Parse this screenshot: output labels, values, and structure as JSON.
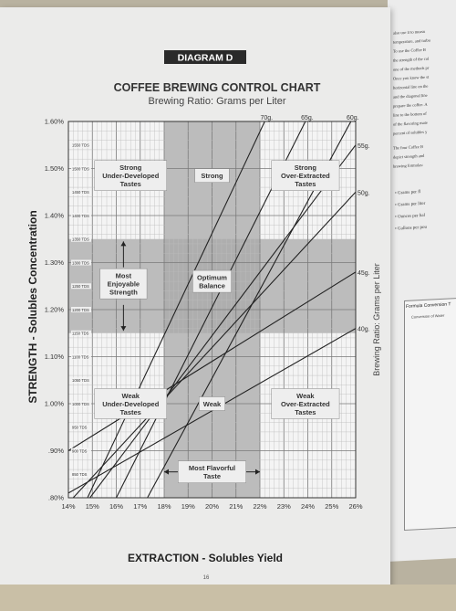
{
  "diagram_label": "DIAGRAM D",
  "page_number": "16",
  "chart_data": {
    "type": "line",
    "title": "COFFEE BREWING CONTROL CHART",
    "subtitle": "Brewing Ratio:  Grams per Liter",
    "xlabel": "EXTRACTION - Solubles Yield",
    "ylabel": "STRENGTH - Solubles Concentration",
    "ylabel_right": "Brewing Ratio:  Grams per Liter",
    "xlim": [
      14,
      26
    ],
    "ylim": [
      0.8,
      1.6
    ],
    "x_ticks": [
      "14%",
      "15%",
      "16%",
      "17%",
      "18%",
      "19%",
      "20%",
      "21%",
      "22%",
      "23%",
      "24%",
      "25%",
      "26%"
    ],
    "y_ticks": [
      {
        "v": 0.8,
        "label": ".80%"
      },
      {
        "v": 0.9,
        "label": ".90%"
      },
      {
        "v": 1.0,
        "label": "1.00%"
      },
      {
        "v": 1.1,
        "label": "1.10%"
      },
      {
        "v": 1.2,
        "label": "1.20%"
      },
      {
        "v": 1.3,
        "label": "1.30%"
      },
      {
        "v": 1.4,
        "label": "1.40%"
      },
      {
        "v": 1.5,
        "label": "1.50%"
      },
      {
        "v": 1.6,
        "label": "1.60%"
      }
    ],
    "tds_ticks": [
      {
        "v": 0.85,
        "label": "850 TDS"
      },
      {
        "v": 0.9,
        "label": "900 TDS"
      },
      {
        "v": 0.95,
        "label": "950 TDS"
      },
      {
        "v": 1.0,
        "label": "1000 TDS"
      },
      {
        "v": 1.05,
        "label": "1050 TDS"
      },
      {
        "v": 1.1,
        "label": "1100 TDS"
      },
      {
        "v": 1.15,
        "label": "1150 TDS"
      },
      {
        "v": 1.2,
        "label": "1200 TDS"
      },
      {
        "v": 1.25,
        "label": "1250 TDS"
      },
      {
        "v": 1.3,
        "label": "1300 TDS"
      },
      {
        "v": 1.35,
        "label": "1350 TDS"
      },
      {
        "v": 1.4,
        "label": "1400 TDS"
      },
      {
        "v": 1.45,
        "label": "1450 TDS"
      },
      {
        "v": 1.5,
        "label": "1500 TDS"
      },
      {
        "v": 1.55,
        "label": "1550 TDS"
      }
    ],
    "ratio_lines": [
      {
        "label": "70g.",
        "x": [
          14.8,
          22.2
        ],
        "y": [
          0.8,
          1.6
        ]
      },
      {
        "label": "65g.",
        "x": [
          16.0,
          23.9
        ],
        "y": [
          0.8,
          1.6
        ]
      },
      {
        "label": "60g.",
        "x": [
          17.3,
          25.8
        ],
        "y": [
          0.8,
          1.6
        ]
      },
      {
        "label": "55g.",
        "x": [
          14.9,
          26.0
        ],
        "y": [
          0.8,
          1.55
        ]
      },
      {
        "label": "50g.",
        "x": [
          14.2,
          26.0
        ],
        "y": [
          0.8,
          1.45
        ]
      },
      {
        "label": "45g.",
        "x": [
          14.0,
          26.0
        ],
        "y": [
          0.9,
          1.28
        ]
      },
      {
        "label": "40g.",
        "x": [
          14.0,
          26.0
        ],
        "y": [
          0.81,
          1.16
        ]
      }
    ],
    "optimum_extraction": [
      18,
      22
    ],
    "optimum_strength": [
      1.15,
      1.35
    ],
    "region_labels": [
      {
        "text": "Strong Under-Developed Tastes",
        "lines": [
          "Strong",
          "Under-Developed",
          "Tastes"
        ],
        "x": 16.6,
        "y": 1.485
      },
      {
        "text": "Strong",
        "lines": [
          "Strong"
        ],
        "x": 20.0,
        "y": 1.485
      },
      {
        "text": "Strong Over-Extracted Tastes",
        "lines": [
          "Strong",
          "Over-Extracted",
          "Tastes"
        ],
        "x": 23.9,
        "y": 1.485
      },
      {
        "text": "Most Enjoyable Strength",
        "lines": [
          "Most",
          "Enjoyable",
          "Strength"
        ],
        "x": 16.3,
        "y": 1.255
      },
      {
        "text": "Optimum Balance",
        "lines": [
          "Optimum",
          "Balance"
        ],
        "x": 20.0,
        "y": 1.26
      },
      {
        "text": "Weak Under-Developed Tastes",
        "lines": [
          "Weak",
          "Under-Developed",
          "Tastes"
        ],
        "x": 16.6,
        "y": 1.0
      },
      {
        "text": "Weak",
        "lines": [
          "Weak"
        ],
        "x": 20.0,
        "y": 1.0
      },
      {
        "text": "Weak Over-Extracted Tastes",
        "lines": [
          "Weak",
          "Over-Extracted",
          "Tastes"
        ],
        "x": 23.9,
        "y": 1.0
      },
      {
        "text": "Most Flavorful Taste",
        "lines": [
          "Most Flavorful",
          "Taste"
        ],
        "x": 20.0,
        "y": 0.855
      }
    ],
    "grid": true
  },
  "right_page": {
    "text_lines": [
      "also use it to measu",
      "temperature, and turbu",
      "To use the Coffee B",
      "the strength of the col",
      "one of the methods pr",
      "Once you know the st",
      "horizontal line on the",
      "and the diagonal line",
      "prepare the coffee. A",
      "line to the bottom of",
      "of the flavoring mate",
      "percent of solubles y",
      "The four Coffee B",
      "depict strength and",
      "brewing formulas:"
    ],
    "bullets": [
      "Grams per fl",
      "Grams per liter",
      "Ounces per hal",
      "Gallons per pou"
    ],
    "table_title": "Formula Conversion T",
    "table_subtitle": "Conversion of Water"
  }
}
